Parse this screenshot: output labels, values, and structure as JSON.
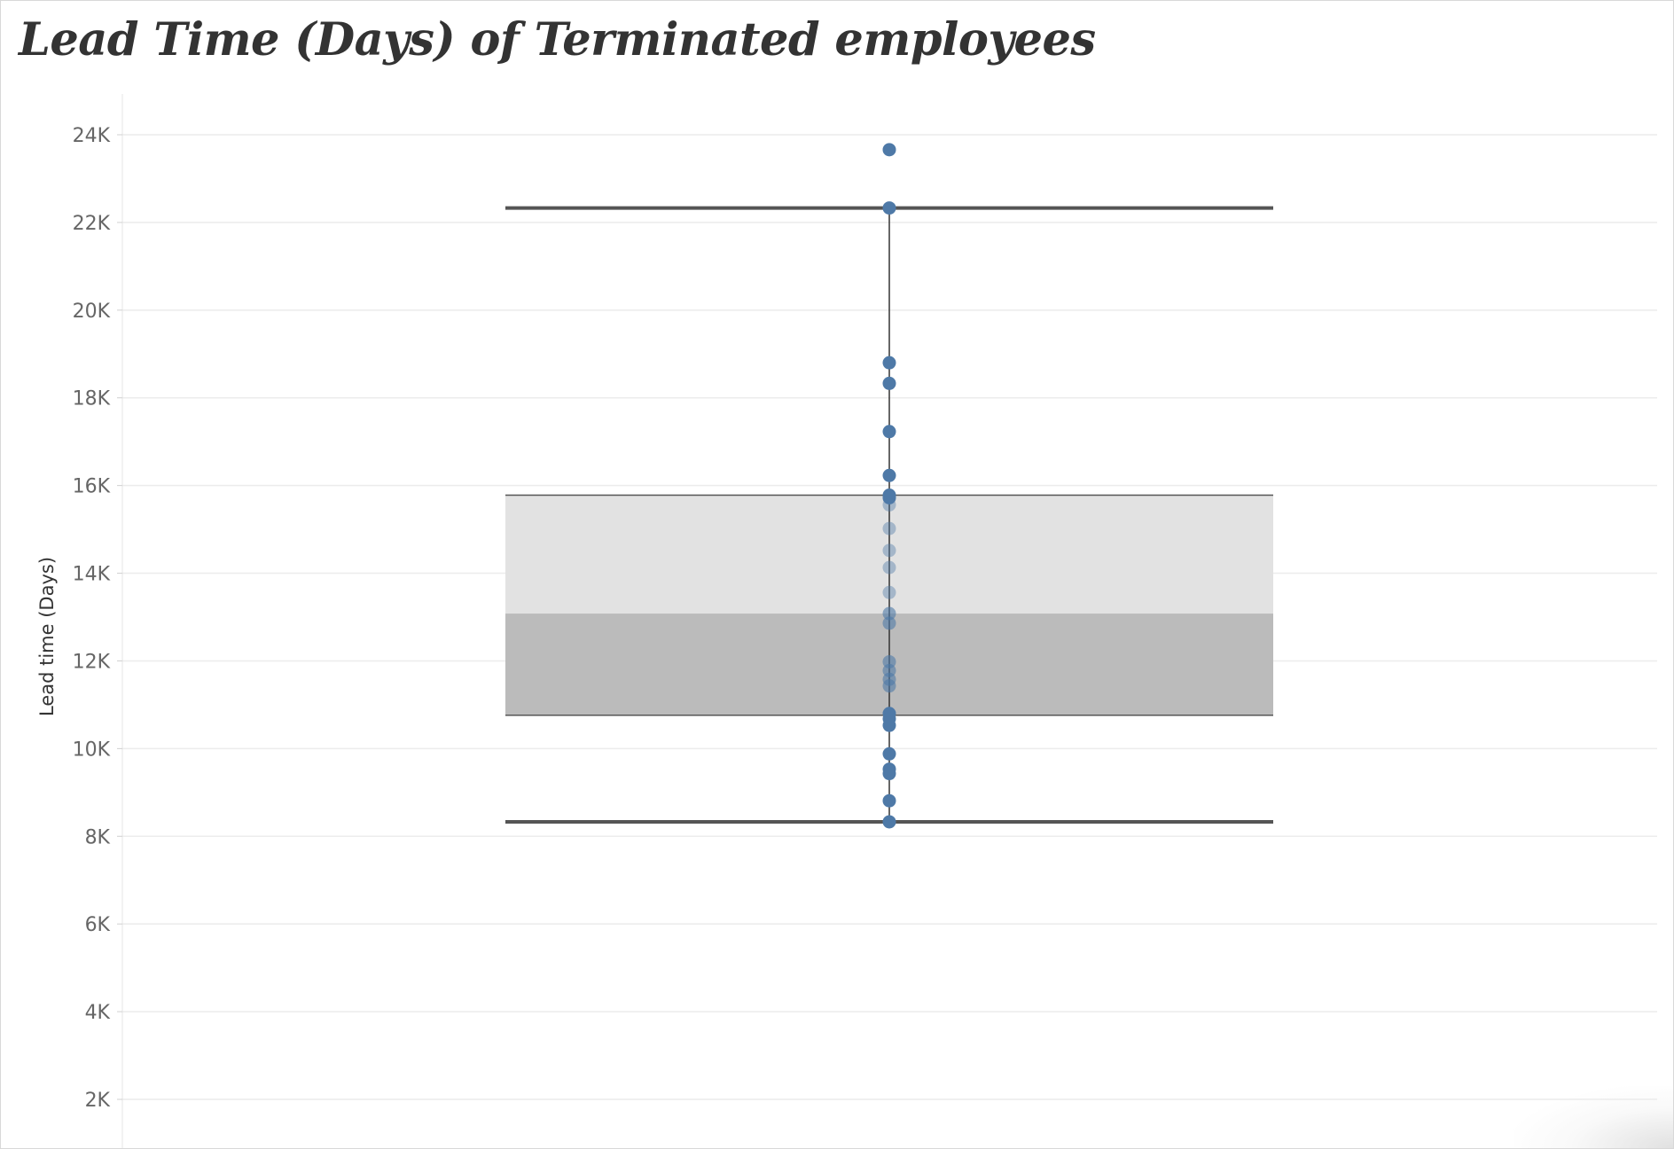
{
  "title": "Lead Time (Days) of Terminated employees",
  "chart_data": {
    "type": "scatter",
    "subtype": "box-plot-with-jitter-points",
    "title": "Lead Time (Days) of Terminated employees",
    "xlabel": "",
    "ylabel": "Lead time (Days)",
    "ylim": [
      0,
      25000
    ],
    "yticks": [
      2000,
      4000,
      6000,
      8000,
      10000,
      12000,
      14000,
      16000,
      18000,
      20000,
      22000,
      24000
    ],
    "ytick_labels": [
      "2K",
      "4K",
      "6K",
      "8K",
      "10K",
      "12K",
      "14K",
      "16K",
      "18K",
      "20K",
      "22K",
      "24K"
    ],
    "grid": true,
    "legend": "none",
    "box": {
      "whisker_low": 8330,
      "q1": 10760,
      "median": 13080,
      "q3": 15780,
      "whisker_high": 22330
    },
    "points": [
      23660,
      22330,
      18800,
      18330,
      17230,
      16230,
      15780,
      15720,
      15560,
      15020,
      14520,
      14130,
      13560,
      13080,
      12860,
      11980,
      11780,
      11580,
      11430,
      10800,
      10680,
      10530,
      9880,
      9530,
      9430,
      8810,
      8330
    ],
    "colors": {
      "point": "#4e79a7",
      "box_lower": "#bbbbbb",
      "box_upper": "#e2e2e2",
      "whisker": "#555555",
      "grid": "#ececec"
    }
  }
}
